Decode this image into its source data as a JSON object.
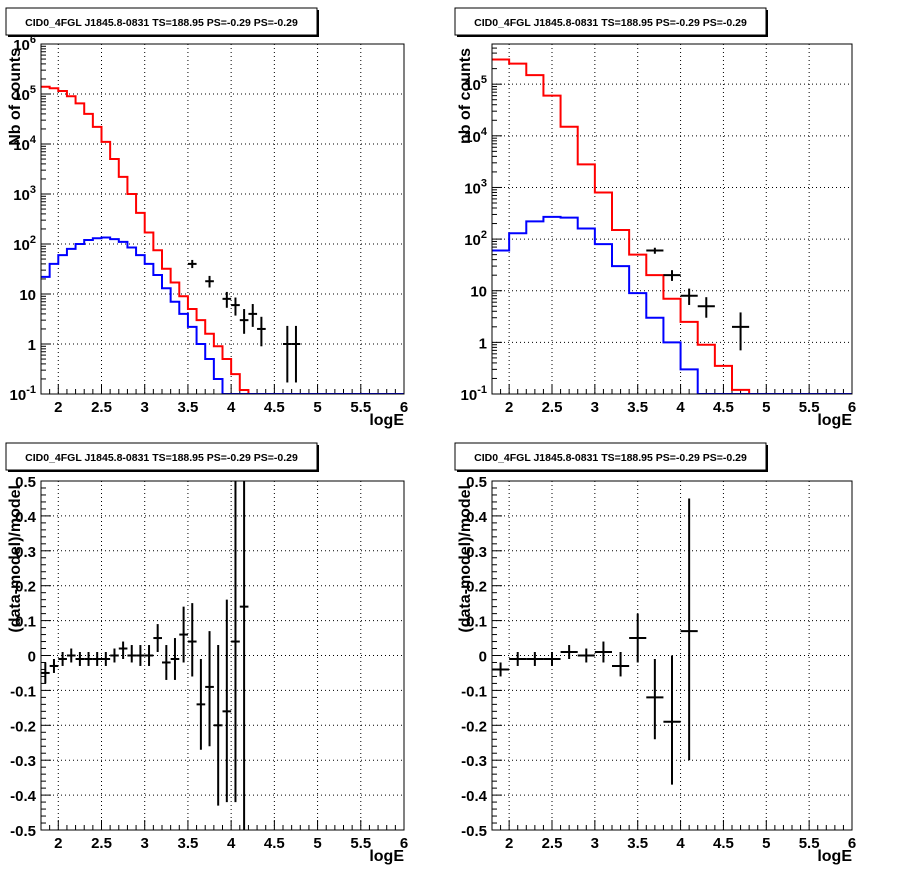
{
  "colors": {
    "model_total": "#ff0000",
    "model_source": "#0000ff",
    "data": "#000000"
  },
  "chart_data": [
    {
      "type": "line",
      "title": "CID0_4FGL J1845.8-0831 TS=188.95 PS=-0.29 PS=-0.29",
      "xlabel": "logE",
      "ylabel": "Nb of counts",
      "xlim": [
        1.8,
        6.0
      ],
      "ylim": [
        0.1,
        1000000
      ],
      "log_y": true,
      "grid": true,
      "x_ticks": [
        "2",
        "2.5",
        "3",
        "3.5",
        "4",
        "4.5",
        "5",
        "5.5",
        "6"
      ],
      "y_ticks": [
        {
          "base": "10",
          "exp": "-1"
        },
        {
          "base": "1",
          "exp": ""
        },
        {
          "base": "10",
          "exp": ""
        },
        {
          "base": "10",
          "exp": "2"
        },
        {
          "base": "10",
          "exp": "3"
        },
        {
          "base": "10",
          "exp": "4"
        },
        {
          "base": "10",
          "exp": "5"
        },
        {
          "base": "10",
          "exp": "6"
        }
      ],
      "bin_edges": [
        1.8,
        1.9,
        2.0,
        2.1,
        2.2,
        2.3,
        2.4,
        2.5,
        2.6,
        2.7,
        2.8,
        2.9,
        3.0,
        3.1,
        3.2,
        3.3,
        3.4,
        3.5,
        3.6,
        3.7,
        3.8,
        3.9,
        4.0,
        4.1,
        4.2,
        4.3,
        4.4,
        4.5,
        4.6,
        4.7,
        4.8,
        4.9,
        5.0,
        5.1,
        5.2,
        5.3,
        5.4,
        5.5,
        5.6,
        5.7,
        5.8,
        5.9,
        6.0
      ],
      "series": [
        {
          "style": "step",
          "color": "#ff0000",
          "values": [
            140000,
            130000,
            115000,
            90000,
            65000,
            40000,
            22000,
            11000,
            5000,
            2200,
            1000,
            420,
            170,
            75,
            32,
            17,
            9,
            5,
            3,
            1.6,
            0.9,
            0.5,
            0.25,
            0.12,
            0.1,
            0.1,
            0.1,
            0.1,
            0.1,
            0.1,
            0.1,
            0.1,
            0.1,
            0.1,
            0.1,
            0.1,
            0.1,
            0.1,
            0.1,
            0.1,
            0.1,
            0.1
          ]
        },
        {
          "style": "step",
          "color": "#0000ff",
          "values": [
            22,
            40,
            60,
            80,
            100,
            120,
            130,
            135,
            125,
            110,
            85,
            60,
            40,
            24,
            13,
            7,
            4,
            2.2,
            1,
            0.5,
            0.2,
            0.1,
            0.1,
            0.1,
            0.1,
            0.1,
            0.1,
            0.1,
            0.1,
            0.1,
            0.1,
            0.1,
            0.1,
            0.1,
            0.1,
            0.1,
            0.1,
            0.1,
            0.1,
            0.1,
            0.1,
            0.1
          ]
        },
        {
          "style": "errorbar",
          "color": "#000000",
          "points": [
            {
              "x": 3.55,
              "y": 40,
              "lo": 33,
              "hi": 48
            },
            {
              "x": 3.75,
              "y": 18,
              "lo": 13.5,
              "hi": 23
            },
            {
              "x": 3.95,
              "y": 8,
              "lo": 5.3,
              "hi": 11
            },
            {
              "x": 4.05,
              "y": 6,
              "lo": 3.7,
              "hi": 8.5
            },
            {
              "x": 4.15,
              "y": 3,
              "lo": 1.6,
              "hi": 5
            },
            {
              "x": 4.25,
              "y": 4,
              "lo": 2.2,
              "hi": 6.3
            },
            {
              "x": 4.35,
              "y": 2,
              "lo": 0.9,
              "hi": 3.5
            },
            {
              "x": 4.65,
              "y": 1,
              "lo": 0.17,
              "hi": 2.3
            },
            {
              "x": 4.75,
              "y": 1,
              "lo": 0.17,
              "hi": 2.3
            }
          ]
        }
      ]
    },
    {
      "type": "line",
      "title": "CID0_4FGL J1845.8-0831 TS=188.95 PS=-0.29 PS=-0.29",
      "xlabel": "logE",
      "ylabel": "nb of counts",
      "xlim": [
        1.8,
        6.0
      ],
      "ylim": [
        0.1,
        600000
      ],
      "log_y": true,
      "grid": true,
      "x_ticks": [
        "2",
        "2.5",
        "3",
        "3.5",
        "4",
        "4.5",
        "5",
        "5.5",
        "6"
      ],
      "y_ticks": [
        {
          "base": "10",
          "exp": "-1"
        },
        {
          "base": "1",
          "exp": ""
        },
        {
          "base": "10",
          "exp": ""
        },
        {
          "base": "10",
          "exp": "2"
        },
        {
          "base": "10",
          "exp": "3"
        },
        {
          "base": "10",
          "exp": "4"
        },
        {
          "base": "10",
          "exp": "5"
        }
      ],
      "bin_edges": [
        1.8,
        2.0,
        2.2,
        2.4,
        2.6,
        2.8,
        3.0,
        3.2,
        3.4,
        3.6,
        3.8,
        4.0,
        4.2,
        4.4,
        4.6,
        4.8,
        5.0,
        5.2,
        5.4,
        5.6,
        5.8,
        6.0
      ],
      "series": [
        {
          "style": "step",
          "color": "#ff0000",
          "values": [
            300000,
            250000,
            150000,
            60000,
            15000,
            2800,
            800,
            150,
            50,
            20,
            7,
            2.5,
            0.9,
            0.35,
            0.12,
            0.1,
            0.1,
            0.1,
            0.1,
            0.1,
            0.1
          ]
        },
        {
          "style": "step",
          "color": "#0000ff",
          "values": [
            60,
            130,
            220,
            270,
            260,
            160,
            80,
            30,
            9,
            3,
            1,
            0.3,
            0.1,
            0.1,
            0.1,
            0.1,
            0.1,
            0.1,
            0.1,
            0.1,
            0.1
          ]
        },
        {
          "style": "errorbar",
          "color": "#000000",
          "points": [
            {
              "x": 3.7,
              "y": 60,
              "lo": 52,
              "hi": 68
            },
            {
              "x": 3.9,
              "y": 20,
              "lo": 15.5,
              "hi": 25
            },
            {
              "x": 4.1,
              "y": 8,
              "lo": 5.3,
              "hi": 11
            },
            {
              "x": 4.3,
              "y": 5,
              "lo": 3,
              "hi": 7.5
            },
            {
              "x": 4.7,
              "y": 2,
              "lo": 0.7,
              "hi": 3.8
            }
          ]
        }
      ]
    },
    {
      "type": "scatter",
      "title": "CID0_4FGL J1845.8-0831 TS=188.95 PS=-0.29 PS=-0.29",
      "xlabel": "logE",
      "ylabel": "(data-model)/model",
      "xlim": [
        1.8,
        6.0
      ],
      "ylim": [
        -0.5,
        0.5
      ],
      "grid": true,
      "x_ticks": [
        "2",
        "2.5",
        "3",
        "3.5",
        "4",
        "4.5",
        "5",
        "5.5",
        "6"
      ],
      "y_ticks": [
        "-0.5",
        "-0.4",
        "-0.3",
        "-0.2",
        "-0.1",
        "0",
        "0.1",
        "0.2",
        "0.3",
        "0.4",
        "0.5"
      ],
      "points": [
        {
          "x": 1.85,
          "y": -0.05,
          "lo": -0.08,
          "hi": -0.02
        },
        {
          "x": 1.95,
          "y": -0.03,
          "lo": -0.05,
          "hi": -0.01
        },
        {
          "x": 2.05,
          "y": -0.01,
          "lo": -0.03,
          "hi": 0.01
        },
        {
          "x": 2.15,
          "y": 0.0,
          "lo": -0.02,
          "hi": 0.02
        },
        {
          "x": 2.25,
          "y": -0.01,
          "lo": -0.03,
          "hi": 0.01
        },
        {
          "x": 2.35,
          "y": -0.01,
          "lo": -0.03,
          "hi": 0.01
        },
        {
          "x": 2.45,
          "y": -0.01,
          "lo": -0.03,
          "hi": 0.01
        },
        {
          "x": 2.55,
          "y": -0.01,
          "lo": -0.03,
          "hi": 0.01
        },
        {
          "x": 2.65,
          "y": 0.0,
          "lo": -0.02,
          "hi": 0.02
        },
        {
          "x": 2.75,
          "y": 0.02,
          "lo": -0.01,
          "hi": 0.04
        },
        {
          "x": 2.85,
          "y": 0.0,
          "lo": -0.02,
          "hi": 0.03
        },
        {
          "x": 2.95,
          "y": 0.0,
          "lo": -0.03,
          "hi": 0.03
        },
        {
          "x": 3.05,
          "y": 0.0,
          "lo": -0.03,
          "hi": 0.03
        },
        {
          "x": 3.15,
          "y": 0.05,
          "lo": 0.01,
          "hi": 0.09
        },
        {
          "x": 3.25,
          "y": -0.02,
          "lo": -0.07,
          "hi": 0.03
        },
        {
          "x": 3.35,
          "y": -0.01,
          "lo": -0.07,
          "hi": 0.05
        },
        {
          "x": 3.45,
          "y": 0.06,
          "lo": -0.02,
          "hi": 0.14
        },
        {
          "x": 3.55,
          "y": 0.04,
          "lo": -0.06,
          "hi": 0.15
        },
        {
          "x": 3.65,
          "y": -0.14,
          "lo": -0.27,
          "hi": -0.01
        },
        {
          "x": 3.75,
          "y": -0.09,
          "lo": -0.26,
          "hi": 0.07
        },
        {
          "x": 3.85,
          "y": -0.2,
          "lo": -0.43,
          "hi": 0.03
        },
        {
          "x": 3.95,
          "y": -0.16,
          "lo": -0.42,
          "hi": 0.16
        },
        {
          "x": 4.05,
          "y": 0.04,
          "lo": -0.42,
          "hi": 0.5
        },
        {
          "x": 4.15,
          "y": 0.14,
          "lo": -0.5,
          "hi": 0.5
        }
      ]
    },
    {
      "type": "scatter",
      "title": "CID0_4FGL J1845.8-0831 TS=188.95 PS=-0.29 PS=-0.29",
      "xlabel": "logE",
      "ylabel": "(data-model)/model",
      "xlim": [
        1.8,
        6.0
      ],
      "ylim": [
        -0.5,
        0.5
      ],
      "grid": true,
      "x_ticks": [
        "2",
        "2.5",
        "3",
        "3.5",
        "4",
        "4.5",
        "5",
        "5.5",
        "6"
      ],
      "y_ticks": [
        "-0.5",
        "-0.4",
        "-0.3",
        "-0.2",
        "-0.1",
        "0",
        "0.1",
        "0.2",
        "0.3",
        "0.4",
        "0.5"
      ],
      "points": [
        {
          "x": 1.9,
          "y": -0.04,
          "lo": -0.06,
          "hi": -0.02
        },
        {
          "x": 2.1,
          "y": -0.01,
          "lo": -0.03,
          "hi": 0.01
        },
        {
          "x": 2.3,
          "y": -0.01,
          "lo": -0.03,
          "hi": 0.01
        },
        {
          "x": 2.5,
          "y": -0.01,
          "lo": -0.03,
          "hi": 0.01
        },
        {
          "x": 2.7,
          "y": 0.01,
          "lo": -0.01,
          "hi": 0.03
        },
        {
          "x": 2.9,
          "y": 0.0,
          "lo": -0.02,
          "hi": 0.02
        },
        {
          "x": 3.1,
          "y": 0.01,
          "lo": -0.02,
          "hi": 0.04
        },
        {
          "x": 3.3,
          "y": -0.03,
          "lo": -0.06,
          "hi": 0.01
        },
        {
          "x": 3.5,
          "y": 0.05,
          "lo": -0.02,
          "hi": 0.12
        },
        {
          "x": 3.7,
          "y": -0.12,
          "lo": -0.24,
          "hi": -0.01
        },
        {
          "x": 3.9,
          "y": -0.19,
          "lo": -0.37,
          "hi": 0.0
        },
        {
          "x": 4.1,
          "y": 0.07,
          "lo": -0.3,
          "hi": 0.45
        }
      ]
    }
  ]
}
